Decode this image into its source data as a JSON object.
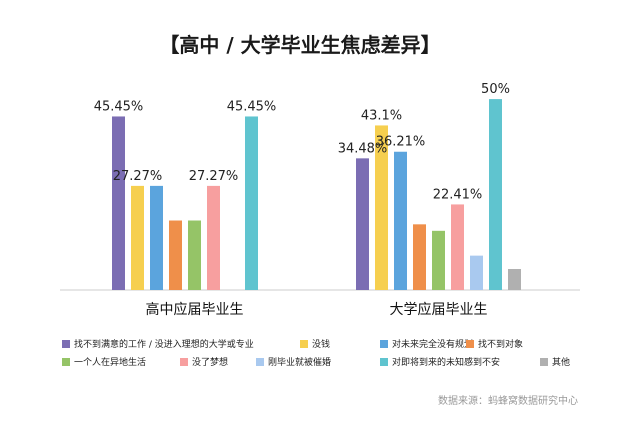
{
  "chart_data": {
    "type": "bar",
    "title": "【高中 / 大学毕业生焦虑差异】",
    "categories": [
      "高中应届毕业生",
      "大学应届毕业生"
    ],
    "series": [
      {
        "name": "找不到满意的工作 / 没进入理想的大学或专业",
        "color": "#7b6db3",
        "values": [
          45.45,
          34.48
        ],
        "labels": [
          "45.45%",
          "34.48%"
        ]
      },
      {
        "name": "没钱",
        "color": "#f6cf4f",
        "values": [
          27.27,
          43.1
        ],
        "labels": [
          "27.27%",
          "43.1%"
        ]
      },
      {
        "name": "对未来完全没有规划",
        "color": "#5ba4dd",
        "values": [
          27.27,
          36.21
        ],
        "labels": [
          "",
          "36.21%"
        ]
      },
      {
        "name": "找不到对象",
        "color": "#ef8f4a",
        "values": [
          18.2,
          17.2
        ],
        "labels": [
          "",
          ""
        ]
      },
      {
        "name": "一个人在异地生活",
        "color": "#95c467",
        "values": [
          18.2,
          15.5
        ],
        "labels": [
          "",
          ""
        ]
      },
      {
        "name": "没了梦想",
        "color": "#f79f9f",
        "values": [
          27.27,
          22.41
        ],
        "labels": [
          "27.27%",
          "22.41%"
        ]
      },
      {
        "name": "刚毕业就被催婚",
        "color": "#a9c9ef",
        "values": [
          0,
          9.0
        ],
        "labels": [
          "",
          ""
        ]
      },
      {
        "name": "对即将到来的未知感到不安",
        "color": "#5fc4cf",
        "values": [
          45.45,
          50
        ],
        "labels": [
          "45.45%",
          "50%"
        ]
      },
      {
        "name": "其他",
        "color": "#b0b0b0",
        "values": [
          0,
          5.5
        ],
        "labels": [
          "",
          ""
        ]
      }
    ],
    "ylim": [
      0,
      55
    ],
    "grid": false,
    "legend_placement": "bottom",
    "source": "数据来源：蚂蜂窝数据研究中心"
  }
}
